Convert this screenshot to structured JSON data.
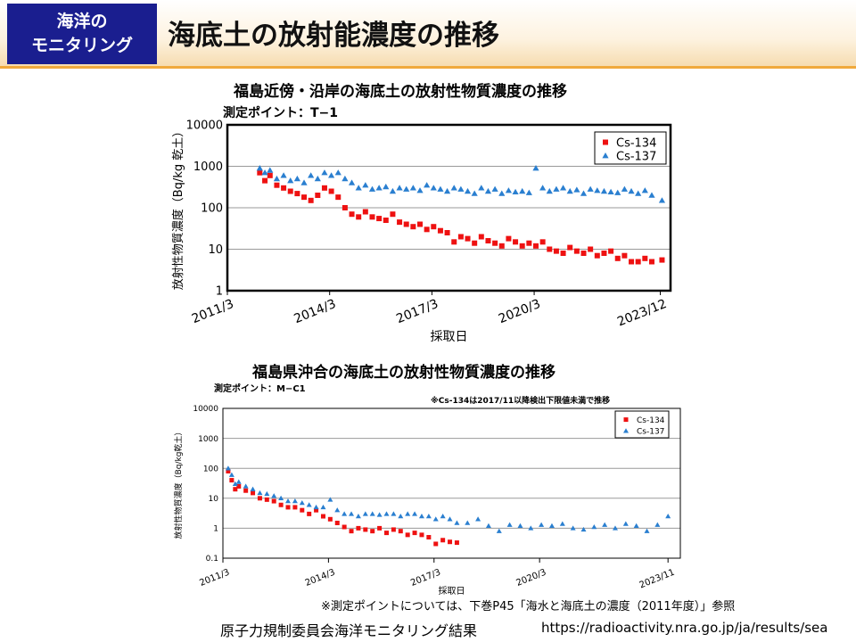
{
  "header": {
    "badge_line1": "海洋の",
    "badge_line2": "モニタリング",
    "title": "海底土の放射能濃度の推移"
  },
  "colors": {
    "cs134": "#ee1111",
    "cs137": "#2a7fd0",
    "badge": "#1a1e8f",
    "accent": "#f0a93c"
  },
  "chart_data": [
    {
      "type": "scatter",
      "title": "福島近傍・沿岸の海底土の放射性物質濃度の推移",
      "point_label": "測定ポイント：T−1",
      "xlabel": "採取日",
      "ylabel": "放射性物質濃度（Bq/kg 乾土）",
      "yscale": "log",
      "ylim": [
        1,
        10000
      ],
      "y_ticks": [
        "1",
        "10",
        "100",
        "1000",
        "10000"
      ],
      "xlim": [
        2011.25,
        2024.25
      ],
      "x_ticks": [
        {
          "v": 2011.25,
          "label": "2011/3"
        },
        {
          "v": 2014.25,
          "label": "2014/3"
        },
        {
          "v": 2017.25,
          "label": "2017/3"
        },
        {
          "v": 2020.25,
          "label": "2020/3"
        },
        {
          "v": 2023.95,
          "label": "2023/12"
        }
      ],
      "legend": [
        "Cs-134",
        "Cs-137"
      ],
      "series": [
        {
          "name": "Cs-134",
          "marker": "square",
          "x": [
            2012.2,
            2012.35,
            2012.5,
            2012.7,
            2012.9,
            2013.1,
            2013.3,
            2013.5,
            2013.7,
            2013.9,
            2014.1,
            2014.3,
            2014.5,
            2014.7,
            2014.9,
            2015.1,
            2015.3,
            2015.5,
            2015.7,
            2015.9,
            2016.1,
            2016.3,
            2016.5,
            2016.7,
            2016.9,
            2017.1,
            2017.3,
            2017.5,
            2017.7,
            2017.9,
            2018.1,
            2018.3,
            2018.5,
            2018.7,
            2018.9,
            2019.1,
            2019.3,
            2019.5,
            2019.7,
            2019.9,
            2020.1,
            2020.3,
            2020.5,
            2020.7,
            2020.9,
            2021.1,
            2021.3,
            2021.5,
            2021.7,
            2021.9,
            2022.1,
            2022.3,
            2022.5,
            2022.7,
            2022.9,
            2023.1,
            2023.3,
            2023.5,
            2023.7,
            2024.0
          ],
          "y": [
            700,
            450,
            600,
            350,
            300,
            250,
            220,
            180,
            150,
            200,
            300,
            250,
            180,
            100,
            70,
            60,
            80,
            60,
            55,
            50,
            70,
            45,
            40,
            35,
            40,
            30,
            35,
            28,
            25,
            15,
            20,
            18,
            14,
            20,
            16,
            14,
            12,
            18,
            15,
            12,
            14,
            12,
            15,
            10,
            9,
            8,
            11,
            9,
            8,
            10,
            7,
            8,
            9,
            6,
            7,
            5,
            5,
            6,
            5,
            5.5
          ]
        },
        {
          "name": "Cs-137",
          "marker": "triangle",
          "x": [
            2012.2,
            2012.35,
            2012.5,
            2012.7,
            2012.9,
            2013.1,
            2013.3,
            2013.5,
            2013.7,
            2013.9,
            2014.1,
            2014.3,
            2014.5,
            2014.7,
            2014.9,
            2015.1,
            2015.3,
            2015.5,
            2015.7,
            2015.9,
            2016.1,
            2016.3,
            2016.5,
            2016.7,
            2016.9,
            2017.1,
            2017.3,
            2017.5,
            2017.7,
            2017.9,
            2018.1,
            2018.3,
            2018.5,
            2018.7,
            2018.9,
            2019.1,
            2019.3,
            2019.5,
            2019.7,
            2019.9,
            2020.1,
            2020.3,
            2020.5,
            2020.7,
            2020.9,
            2021.1,
            2021.3,
            2021.5,
            2021.7,
            2021.9,
            2022.1,
            2022.3,
            2022.5,
            2022.7,
            2022.9,
            2023.1,
            2023.3,
            2023.5,
            2023.7,
            2024.0
          ],
          "y": [
            900,
            700,
            800,
            500,
            600,
            450,
            500,
            400,
            600,
            500,
            700,
            600,
            700,
            500,
            400,
            300,
            350,
            280,
            300,
            320,
            250,
            300,
            280,
            300,
            260,
            350,
            300,
            280,
            250,
            300,
            280,
            250,
            220,
            300,
            250,
            280,
            220,
            260,
            240,
            250,
            230,
            900,
            300,
            250,
            280,
            300,
            250,
            270,
            220,
            280,
            260,
            250,
            240,
            230,
            280,
            250,
            220,
            260,
            200,
            150
          ]
        }
      ]
    },
    {
      "type": "scatter",
      "title": "福島県沖合の海底土の放射性物質濃度の推移",
      "point_label": "測定ポイント：M−C1",
      "note": "※Cs-134は2017/11以降検出下限値未満で推移",
      "xlabel": "採取日",
      "ylabel": "放射性物質濃度（Bq/kg乾土）",
      "yscale": "log",
      "ylim": [
        0.1,
        10000
      ],
      "y_ticks": [
        "0.1",
        "1",
        "10",
        "100",
        "1000",
        "10000"
      ],
      "xlim": [
        2011.25,
        2024.25
      ],
      "x_ticks": [
        {
          "v": 2011.25,
          "label": "2011/3"
        },
        {
          "v": 2014.25,
          "label": "2014/3"
        },
        {
          "v": 2017.25,
          "label": "2017/3"
        },
        {
          "v": 2020.25,
          "label": "2020/3"
        },
        {
          "v": 2023.9,
          "label": "2023/11"
        }
      ],
      "legend": [
        "Cs-134",
        "Cs-137"
      ],
      "series": [
        {
          "name": "Cs-134",
          "marker": "square",
          "x": [
            2011.4,
            2011.5,
            2011.6,
            2011.7,
            2011.9,
            2012.1,
            2012.3,
            2012.5,
            2012.7,
            2012.9,
            2013.1,
            2013.3,
            2013.5,
            2013.7,
            2013.9,
            2014.1,
            2014.3,
            2014.5,
            2014.7,
            2014.9,
            2015.1,
            2015.3,
            2015.5,
            2015.7,
            2015.9,
            2016.1,
            2016.3,
            2016.5,
            2016.7,
            2016.9,
            2017.1,
            2017.3,
            2017.5,
            2017.7,
            2017.9
          ],
          "y": [
            80,
            40,
            20,
            25,
            18,
            15,
            10,
            9,
            8,
            6,
            5,
            5,
            4,
            3,
            4,
            2.5,
            2,
            1.5,
            1.1,
            0.8,
            1,
            0.9,
            0.8,
            1,
            0.7,
            0.9,
            0.8,
            0.6,
            0.7,
            0.6,
            0.5,
            0.3,
            0.4,
            0.35,
            0.33
          ]
        },
        {
          "name": "Cs-137",
          "marker": "triangle",
          "x": [
            2011.4,
            2011.5,
            2011.6,
            2011.7,
            2011.9,
            2012.1,
            2012.3,
            2012.5,
            2012.7,
            2012.9,
            2013.1,
            2013.3,
            2013.5,
            2013.7,
            2013.9,
            2014.1,
            2014.3,
            2014.5,
            2014.7,
            2014.9,
            2015.1,
            2015.3,
            2015.5,
            2015.7,
            2015.9,
            2016.1,
            2016.3,
            2016.5,
            2016.7,
            2016.9,
            2017.1,
            2017.3,
            2017.5,
            2017.7,
            2017.9,
            2018.2,
            2018.5,
            2018.8,
            2019.1,
            2019.4,
            2019.7,
            2020.0,
            2020.3,
            2020.6,
            2020.9,
            2021.2,
            2021.5,
            2021.8,
            2022.1,
            2022.4,
            2022.7,
            2023.0,
            2023.3,
            2023.6,
            2023.9
          ],
          "y": [
            100,
            60,
            30,
            35,
            25,
            20,
            15,
            14,
            12,
            10,
            8,
            8,
            7,
            6,
            5,
            5,
            9,
            4,
            3,
            3,
            2.5,
            3,
            3,
            2.8,
            3,
            3,
            2.5,
            3,
            3,
            2.5,
            2.5,
            2,
            2.5,
            2,
            1.5,
            1.5,
            2,
            1.2,
            0.8,
            1.3,
            1.2,
            1,
            1.3,
            1.2,
            1.4,
            1,
            0.9,
            1.1,
            1.3,
            1,
            1.4,
            1.2,
            0.8,
            1.3,
            2.5
          ]
        }
      ]
    }
  ],
  "footer": {
    "footnote": "※測定ポイントについては、下巻P45「海水と海底土の濃度（2011年度）」参照",
    "source": "原子力規制委員会海洋モニタリング結果",
    "url": "https://radioactivity.nra.go.jp/ja/results/sea"
  }
}
